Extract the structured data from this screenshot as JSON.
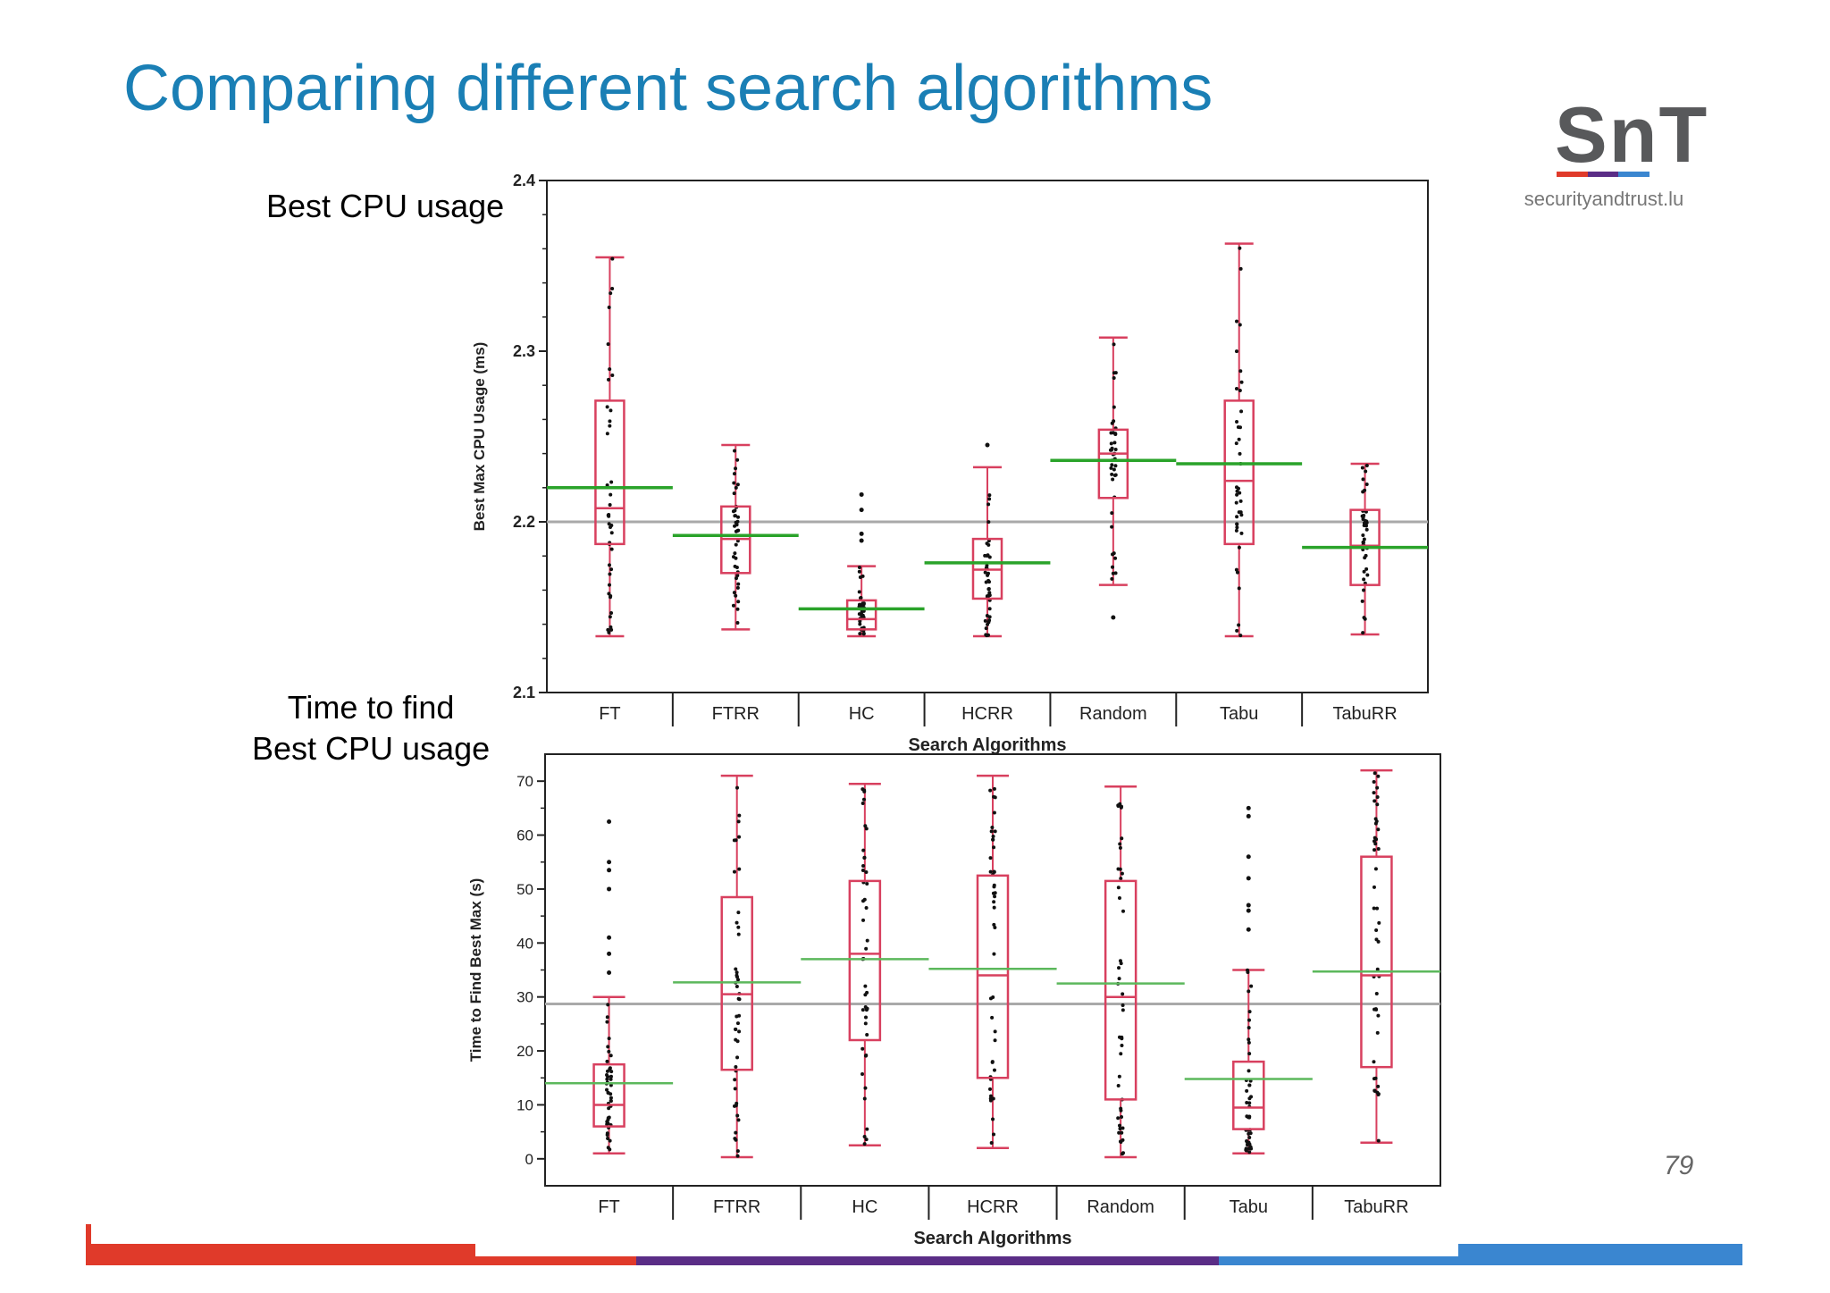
{
  "slide": {
    "title": "Comparing different search algorithms",
    "page_number": "79",
    "label_top": "Best CPU usage",
    "label_bottom_line1": "Time to find",
    "label_bottom_line2": "Best CPU usage"
  },
  "logo": {
    "mark": "SnT",
    "domain": "securityandtrust.lu"
  },
  "colors": {
    "title": "#1a7fb5",
    "box": "#d8405f",
    "mean_line": "#2aa32a",
    "mean_line_light": "#5cb85c",
    "overall_mean": "#a9a9a9",
    "points": "#111111",
    "footer": [
      "#e03a2a",
      "#5a2d86",
      "#3a86d0"
    ]
  },
  "chart_data": [
    {
      "type": "box",
      "title": "",
      "xlabel": "Search Algorithms",
      "ylabel": "Best Max CPU Usage (ms)",
      "ylim": [
        2.1,
        2.4
      ],
      "yticks": [
        2.1,
        2.2,
        2.3,
        2.4
      ],
      "ytick_labels": [
        "2.1",
        "2.2",
        "2.3",
        "2.4"
      ],
      "categories": [
        "FT",
        "FTRR",
        "HC",
        "HCRR",
        "Random",
        "Tabu",
        "TabuRR"
      ],
      "overall_mean": 2.2,
      "boxes": [
        {
          "min": 2.133,
          "q1": 2.187,
          "median": 2.208,
          "q3": 2.271,
          "max": 2.355,
          "mean": 2.22
        },
        {
          "min": 2.137,
          "q1": 2.17,
          "median": 2.19,
          "q3": 2.209,
          "max": 2.245,
          "mean": 2.192
        },
        {
          "min": 2.133,
          "q1": 2.137,
          "median": 2.143,
          "q3": 2.154,
          "max": 2.174,
          "mean": 2.149
        },
        {
          "min": 2.133,
          "q1": 2.155,
          "median": 2.172,
          "q3": 2.19,
          "max": 2.232,
          "mean": 2.176
        },
        {
          "min": 2.163,
          "q1": 2.214,
          "median": 2.24,
          "q3": 2.254,
          "max": 2.308,
          "mean": 2.236
        },
        {
          "min": 2.133,
          "q1": 2.187,
          "median": 2.224,
          "q3": 2.271,
          "max": 2.363,
          "mean": 2.234
        },
        {
          "min": 2.134,
          "q1": 2.163,
          "median": 2.186,
          "q3": 2.207,
          "max": 2.234,
          "mean": 2.185
        }
      ],
      "outliers": [
        {
          "category": "HC",
          "values": [
            2.216,
            2.207,
            2.193,
            2.189
          ]
        },
        {
          "category": "HCRR",
          "values": [
            2.245
          ]
        },
        {
          "category": "Random",
          "values": [
            2.144
          ]
        }
      ]
    },
    {
      "type": "box",
      "title": "",
      "xlabel": "Search Algorithms",
      "ylabel": "Time to Find Best Max (s)",
      "ylim": [
        -5,
        75
      ],
      "yticks": [
        0,
        10,
        20,
        30,
        40,
        50,
        60,
        70
      ],
      "ytick_labels": [
        "0",
        "10",
        "20",
        "30",
        "40",
        "50",
        "60",
        "70"
      ],
      "categories": [
        "FT",
        "FTRR",
        "HC",
        "HCRR",
        "Random",
        "Tabu",
        "TabuRR"
      ],
      "overall_mean": 28.7,
      "boxes": [
        {
          "min": 1,
          "q1": 6,
          "median": 10,
          "q3": 17.5,
          "max": 30,
          "mean": 14
        },
        {
          "min": 0.3,
          "q1": 16.5,
          "median": 30.5,
          "q3": 48.5,
          "max": 71,
          "mean": 32.7
        },
        {
          "min": 2.5,
          "q1": 22,
          "median": 38,
          "q3": 51.5,
          "max": 69.5,
          "mean": 37
        },
        {
          "min": 2,
          "q1": 15,
          "median": 34,
          "q3": 52.5,
          "max": 71,
          "mean": 35.2
        },
        {
          "min": 0.3,
          "q1": 11,
          "median": 30,
          "q3": 51.5,
          "max": 69,
          "mean": 32.5
        },
        {
          "min": 1,
          "q1": 5.5,
          "median": 9.5,
          "q3": 18,
          "max": 35,
          "mean": 14.8
        },
        {
          "min": 3,
          "q1": 17,
          "median": 34,
          "q3": 56,
          "max": 72,
          "mean": 34.7
        }
      ],
      "outliers": [
        {
          "category": "FT",
          "values": [
            62.5,
            55,
            53.5,
            50,
            41,
            38,
            34.5
          ]
        },
        {
          "category": "Tabu",
          "values": [
            65,
            63.5,
            56,
            52,
            47,
            46,
            42.5
          ]
        }
      ]
    }
  ]
}
